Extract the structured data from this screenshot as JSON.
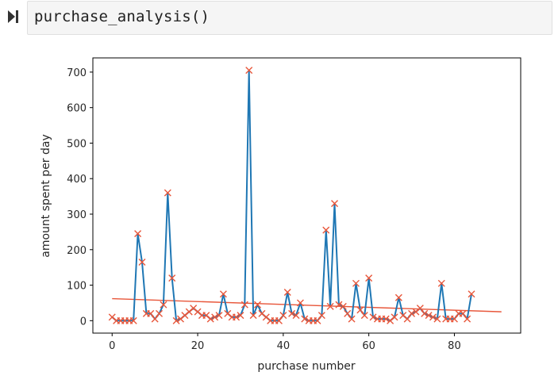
{
  "cell": {
    "code": "purchase_analysis()",
    "run_icon": "run-cell-icon"
  },
  "chart_data": {
    "type": "line",
    "title": "",
    "xlabel": "purchase number",
    "ylabel": "amount spent per day",
    "xlim": [
      -4.5,
      95.5
    ],
    "ylim": [
      -35,
      740
    ],
    "xticks": [
      0,
      20,
      40,
      60,
      80
    ],
    "yticks": [
      0,
      100,
      200,
      300,
      400,
      500,
      600,
      700
    ],
    "grid": false,
    "series": [
      {
        "style": "line-with-x-markers",
        "line_color": "#1f77b4",
        "marker_color": "#e8563a",
        "x": [
          0,
          1,
          2,
          3,
          4,
          5,
          6,
          7,
          8,
          9,
          10,
          11,
          12,
          13,
          14,
          15,
          16,
          17,
          18,
          19,
          20,
          21,
          22,
          23,
          24,
          25,
          26,
          27,
          28,
          29,
          30,
          31,
          32,
          33,
          34,
          35,
          36,
          37,
          38,
          39,
          40,
          41,
          42,
          43,
          44,
          45,
          46,
          47,
          48,
          49,
          50,
          51,
          52,
          53,
          54,
          55,
          56,
          57,
          58,
          59,
          60,
          61,
          62,
          63,
          64,
          65,
          66,
          67,
          68,
          69,
          70,
          71,
          72,
          73,
          74,
          75,
          76,
          77,
          78,
          79,
          80,
          81,
          82,
          83,
          84
        ],
        "y": [
          10,
          0,
          0,
          0,
          0,
          0,
          245,
          165,
          20,
          20,
          5,
          20,
          45,
          360,
          120,
          0,
          5,
          15,
          25,
          35,
          25,
          15,
          15,
          5,
          10,
          15,
          75,
          20,
          10,
          10,
          15,
          45,
          705,
          15,
          45,
          20,
          10,
          0,
          0,
          0,
          15,
          80,
          20,
          15,
          50,
          5,
          0,
          0,
          0,
          15,
          255,
          40,
          330,
          45,
          40,
          20,
          5,
          105,
          30,
          15,
          120,
          10,
          5,
          5,
          5,
          0,
          10,
          65,
          15,
          5,
          20,
          25,
          35,
          20,
          15,
          10,
          5,
          105,
          5,
          5,
          5,
          20,
          20,
          5,
          75
        ]
      },
      {
        "style": "trend-line",
        "color": "#e8563a",
        "x": [
          0,
          91
        ],
        "y": [
          62,
          25
        ]
      }
    ]
  }
}
